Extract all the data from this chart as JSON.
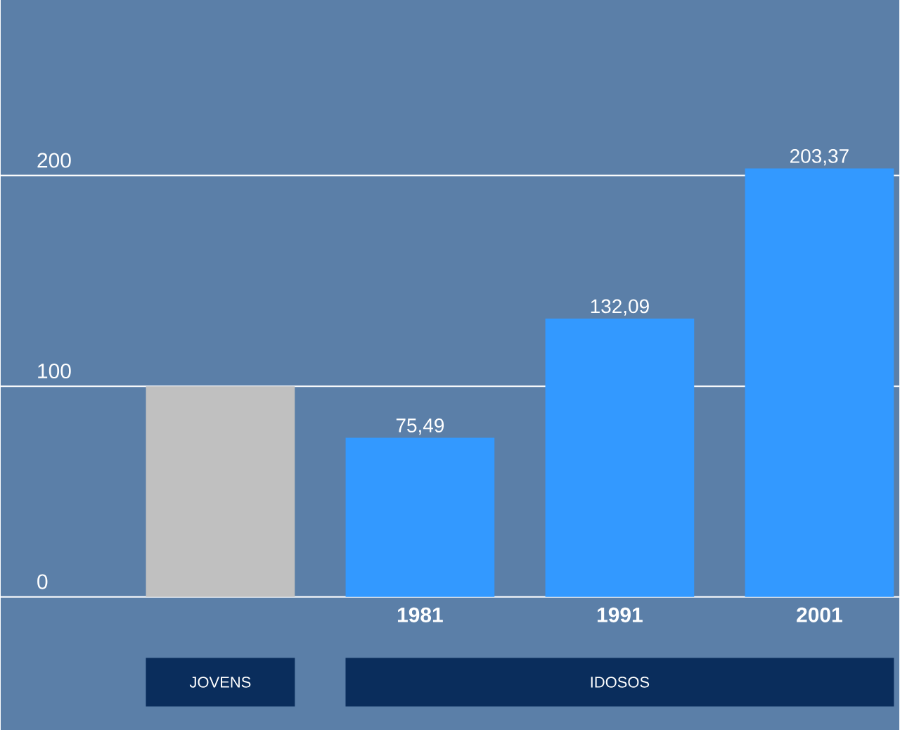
{
  "chart_data": {
    "type": "bar",
    "categories": [
      null,
      "1981",
      "1991",
      "2001"
    ],
    "values": [
      100,
      75.49,
      132.09,
      203.37
    ],
    "colors": [
      "#c0c0c0",
      "#3399ff",
      "#3399ff",
      "#3399ff"
    ],
    "value_labels": [
      null,
      "75,49",
      "132,09",
      "203,37"
    ],
    "ylim": [
      0,
      283
    ],
    "yticks": [
      0,
      100,
      200
    ],
    "grid": "y",
    "annotations": [
      "JOVENS",
      "IDOSOS"
    ]
  }
}
